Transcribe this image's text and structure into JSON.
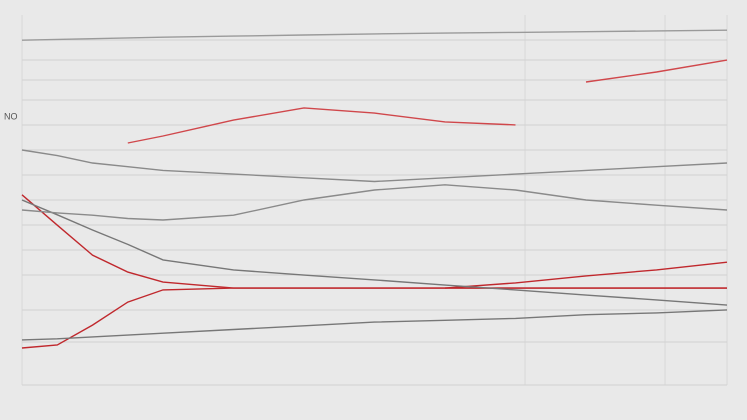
{
  "chart_data": {
    "type": "line",
    "x": [
      0,
      5,
      10,
      15,
      20,
      30,
      40,
      50,
      60,
      70,
      80,
      90,
      100
    ],
    "xlim": [
      0,
      100
    ],
    "ylim": [
      0,
      100
    ],
    "annotations": [
      "NO"
    ],
    "series": [
      {
        "color": "#c0282d",
        "values": [
          10,
          10.8,
          16.2,
          22.4,
          25.7,
          26.2,
          26.2,
          26.2,
          26.2,
          26.2,
          26.2,
          26.2,
          26.2
        ]
      },
      {
        "color": "#c0282d",
        "values": [
          51.4,
          43.2,
          35.1,
          30.5,
          27.8,
          26.2,
          26.2,
          26.2,
          26.2,
          26.2,
          26.2,
          26.2,
          26.2
        ]
      },
      {
        "color": "#d0474b",
        "values": [
          null,
          null,
          null,
          65.4,
          67.3,
          71.6,
          74.9,
          73.5,
          71.1,
          70.3,
          null,
          null,
          null
        ]
      },
      {
        "color": "#d0474b",
        "values": [
          null,
          null,
          null,
          null,
          null,
          null,
          null,
          null,
          null,
          null,
          81.9,
          84.6,
          87.8
        ]
      },
      {
        "color": "#c0282d",
        "values": [
          null,
          null,
          null,
          null,
          null,
          null,
          null,
          null,
          26.2,
          27.6,
          29.5,
          31.1,
          33.2
        ]
      },
      {
        "color": "#777777",
        "values": [
          50,
          46,
          41.9,
          38,
          33.8,
          31.1,
          29.7,
          28.4,
          27,
          25.7,
          24.3,
          23,
          21.6
        ]
      },
      {
        "color": "#8a8a8a",
        "values": [
          47.3,
          46.5,
          45.9,
          45,
          44.6,
          45.9,
          50,
          52.7,
          54.1,
          52.7,
          50,
          48.6,
          47.3
        ]
      },
      {
        "color": "#8a8a8a",
        "values": [
          63.5,
          62,
          60,
          59,
          58,
          57,
          56,
          55,
          56,
          57,
          58,
          59,
          60
        ]
      },
      {
        "color": "#777777",
        "values": [
          12.2,
          12.5,
          13,
          13.5,
          14,
          15,
          16,
          17,
          17.5,
          18,
          19,
          19.5,
          20.3
        ]
      },
      {
        "color": "#9a9a9a",
        "values": [
          93.2,
          93.4,
          93.6,
          93.8,
          94,
          94.3,
          94.6,
          94.9,
          95.1,
          95.3,
          95.5,
          95.7,
          95.9
        ]
      }
    ]
  }
}
